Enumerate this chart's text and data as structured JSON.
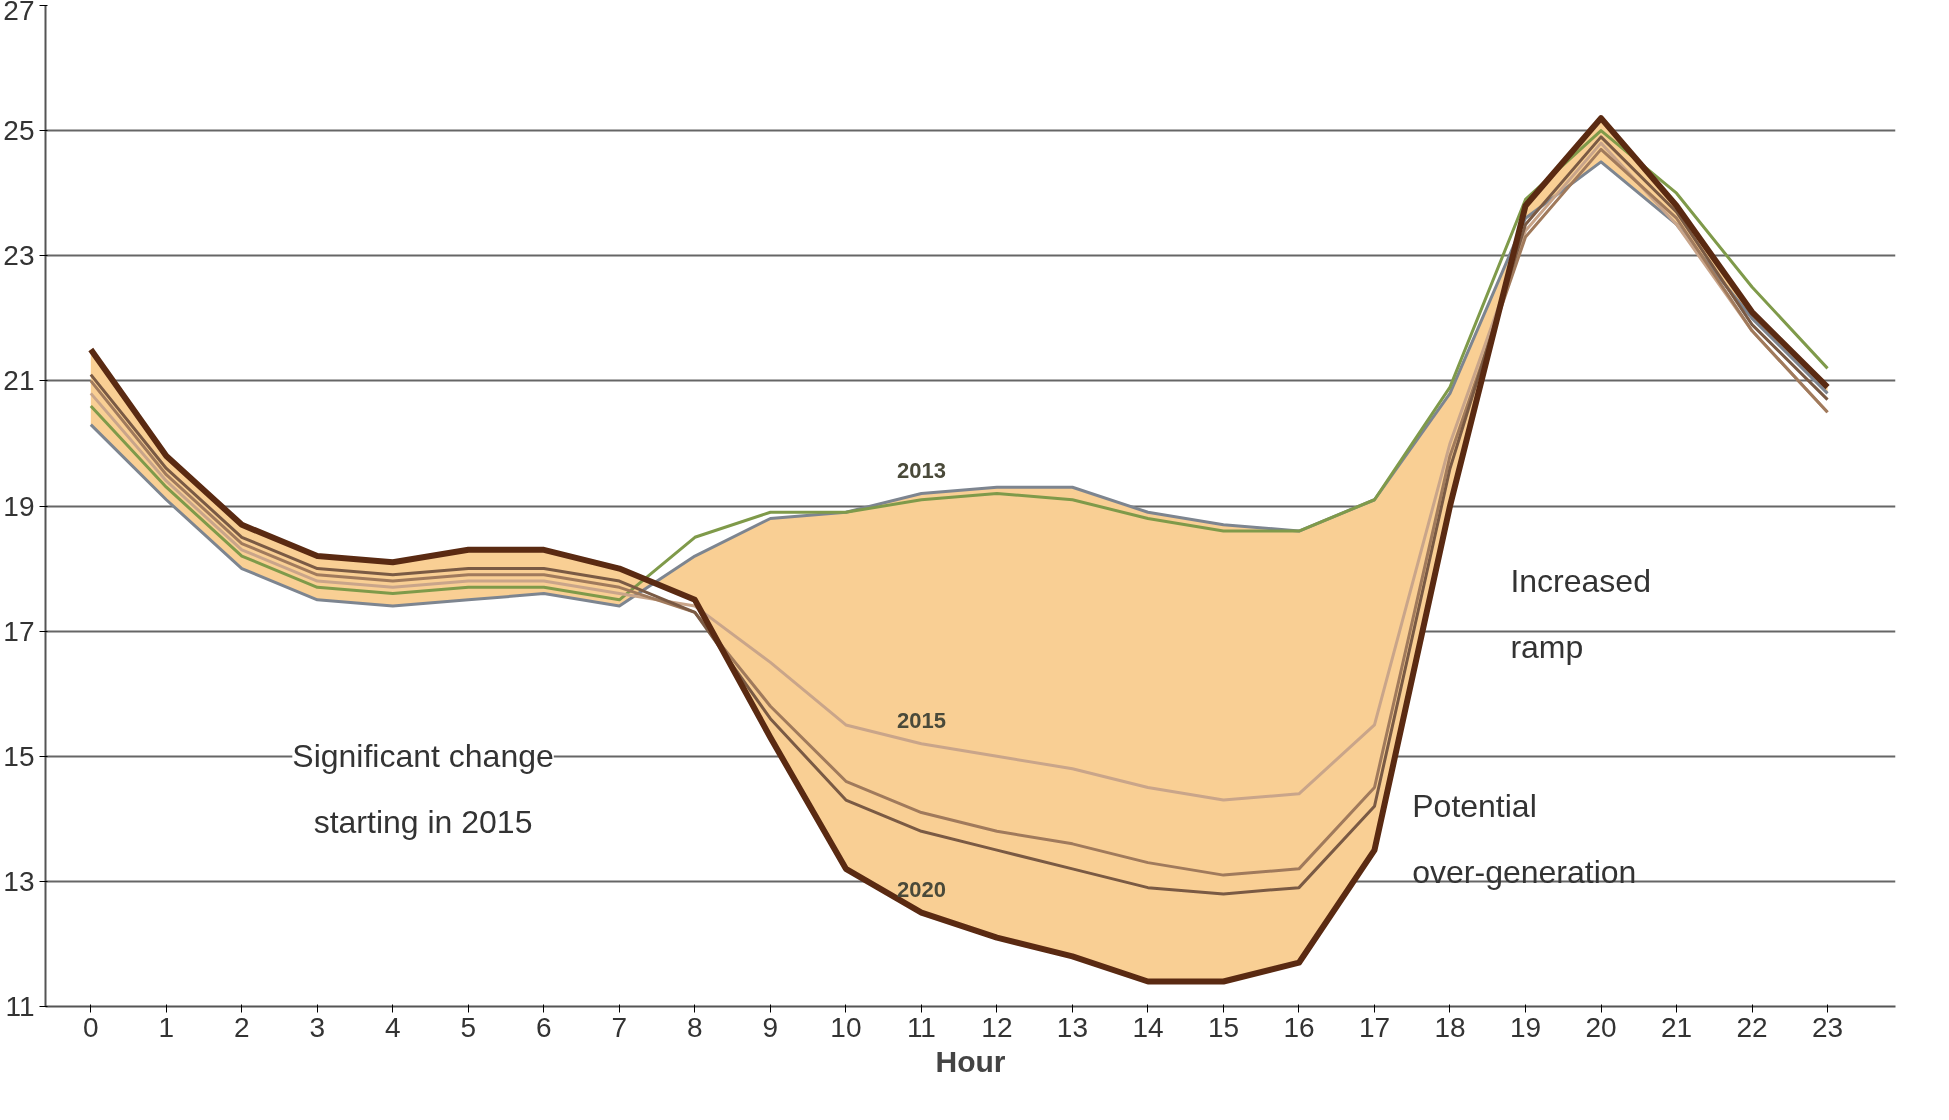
{
  "chart_data": {
    "type": "line",
    "xlabel": "Hour",
    "x": [
      0,
      1,
      2,
      3,
      4,
      5,
      6,
      7,
      8,
      9,
      10,
      11,
      12,
      13,
      14,
      15,
      16,
      17,
      18,
      19,
      20,
      21,
      22,
      23
    ],
    "xlim": [
      -0.6,
      23.9
    ],
    "xticks": [
      0,
      1,
      2,
      3,
      4,
      5,
      6,
      7,
      8,
      9,
      10,
      11,
      12,
      13,
      14,
      15,
      16,
      17,
      18,
      19,
      20,
      21,
      22,
      23
    ],
    "ylim": [
      11,
      27
    ],
    "yticks": [
      11,
      13,
      15,
      17,
      19,
      21,
      23,
      25,
      27
    ],
    "grid": "y",
    "line_style": "solid",
    "marker": "none",
    "series": [
      {
        "name": "2013",
        "color": "#7d8590",
        "values": [
          20.3,
          19.1,
          18.0,
          17.5,
          17.4,
          17.5,
          17.6,
          17.4,
          18.2,
          18.8,
          18.9,
          19.2,
          19.3,
          19.3,
          18.9,
          18.7,
          18.6,
          19.1,
          20.8,
          23.6,
          24.5,
          23.5,
          22.0,
          20.8
        ],
        "lower": [
          21.5,
          19.8,
          18.7,
          18.2,
          18.1,
          18.3,
          18.3,
          18.0,
          17.5,
          15.3,
          13.2,
          12.5,
          12.1,
          11.8,
          11.4,
          11.4,
          11.7,
          13.5,
          19.0,
          23.8,
          25.2,
          23.8,
          22.1,
          20.9
        ],
        "upper": [
          20.3,
          19.1,
          18.0,
          17.5,
          17.4,
          17.5,
          17.6,
          17.4,
          18.2,
          18.8,
          18.9,
          19.2,
          19.3,
          19.3,
          18.9,
          18.7,
          18.6,
          19.1,
          20.8,
          23.6,
          24.5,
          23.5,
          22.0,
          20.8
        ]
      },
      {
        "color": "#7f9a4a",
        "values": [
          20.6,
          19.3,
          18.2,
          17.7,
          17.6,
          17.7,
          17.7,
          17.5,
          18.5,
          18.9,
          18.9,
          19.1,
          19.2,
          19.1,
          18.8,
          18.6,
          18.6,
          19.1,
          20.9,
          23.9,
          25.0,
          24.0,
          22.5,
          21.2
        ]
      },
      {
        "name": "2015",
        "color": "#c9a58a",
        "values": [
          20.8,
          19.4,
          18.3,
          17.8,
          17.7,
          17.8,
          17.8,
          17.6,
          17.4,
          16.5,
          15.5,
          15.2,
          15.0,
          14.8,
          14.5,
          14.3,
          14.4,
          15.5,
          20.0,
          23.4,
          24.8,
          23.5,
          21.8,
          20.5
        ]
      },
      {
        "color": "#a07a5c",
        "values": [
          21.0,
          19.5,
          18.4,
          17.9,
          17.8,
          17.9,
          17.9,
          17.7,
          17.3,
          15.8,
          14.6,
          14.1,
          13.8,
          13.6,
          13.3,
          13.1,
          13.2,
          14.5,
          19.8,
          23.3,
          24.7,
          23.6,
          21.8,
          20.5
        ]
      },
      {
        "color": "#7a5a44",
        "values": [
          21.1,
          19.6,
          18.5,
          18.0,
          17.9,
          18.0,
          18.0,
          17.8,
          17.3,
          15.6,
          14.3,
          13.8,
          13.5,
          13.2,
          12.9,
          12.8,
          12.9,
          14.2,
          19.6,
          23.5,
          24.9,
          23.7,
          21.9,
          20.7
        ]
      },
      {
        "name": "2020",
        "color": "#5a2a12",
        "values": [
          21.5,
          19.8,
          18.7,
          18.2,
          18.1,
          18.3,
          18.3,
          18.0,
          17.5,
          15.3,
          13.2,
          12.5,
          12.1,
          11.8,
          11.4,
          11.4,
          11.7,
          13.5,
          19.0,
          23.8,
          25.2,
          23.8,
          22.1,
          20.9
        ]
      }
    ],
    "annotations": [
      "Significant change starting in 2015",
      "Increased ramp",
      "Potential over-generation"
    ]
  }
}
